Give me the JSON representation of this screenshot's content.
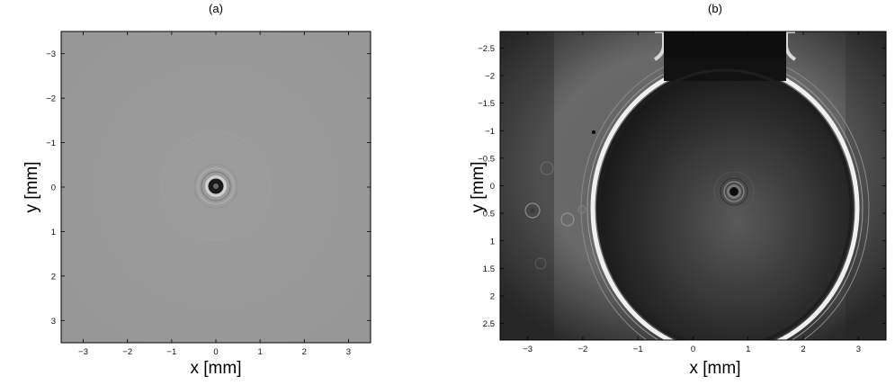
{
  "figure": {
    "panels": [
      {
        "label": "(a)",
        "xlabel": "x [mm]",
        "ylabel": "y [mm]",
        "x_ticks": [
          "-3",
          "-2",
          "-1",
          "0",
          "1",
          "2",
          "3"
        ],
        "y_ticks": [
          "-3",
          "-2",
          "-1",
          "0",
          "1",
          "2",
          "3"
        ],
        "x_range": [
          -3.5,
          3.5
        ],
        "y_range": [
          -3.5,
          3.5
        ],
        "y_inverted": true,
        "background": "#9a9a9a",
        "particle": {
          "x": 0.03,
          "y": 0.03
        }
      },
      {
        "label": "(b)",
        "xlabel": "x [mm]",
        "ylabel": "y [mm]",
        "x_ticks": [
          "-3",
          "-2",
          "-1",
          "0",
          "1",
          "2",
          "3"
        ],
        "y_ticks": [
          "-2.5",
          "-2",
          "-1.5",
          "-1",
          "-0.5",
          "0",
          "0.5",
          "1",
          "1.5",
          "2",
          "2.5"
        ],
        "x_range": [
          -3.5,
          3.5
        ],
        "y_range": [
          -2.8,
          2.8
        ],
        "y_inverted": true,
        "background": "#1a1a1a",
        "particle": {
          "x": 0.35,
          "y": 0.1
        }
      }
    ]
  }
}
